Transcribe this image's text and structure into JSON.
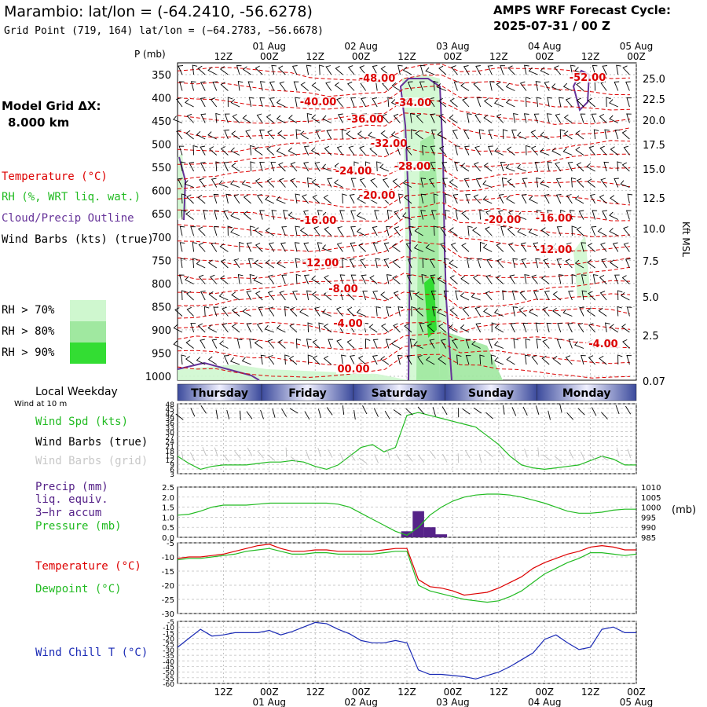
{
  "header": {
    "title": "Marambio:  lat/lon = (-64.2410, -56.6278)",
    "subtitle": "Grid Point (719, 164) lat/lon = (−64.2783, −56.6678)",
    "cycle_line1": "AMPS WRF Forecast Cycle:",
    "cycle_line2": "2025-07-31 / 00  Z"
  },
  "left_labels": {
    "model_grid": "Model Grid ΔX:",
    "grid_value": "8.000 km",
    "temperature": "Temperature (°C)",
    "rh": "RH (%, WRT liq. wat.)",
    "cloud": "Cloud/Precip Outline",
    "wind_barbs": "Wind Barbs (kts) (true)",
    "rh70": "RH > 70%",
    "rh80": "RH > 80%",
    "rh90": "RH > 90%",
    "local_weekday": "Local Weekday",
    "wind_10m": "Wind at 10 m",
    "wind_spd": "Wind Spd (kts)",
    "wind_barbs_true": "Wind Barbs (true)",
    "wind_barbs_grid": "Wind Barbs (grid)",
    "precip": "Precip (mm)",
    "liq": "liq. equiv.",
    "accum": "3−hr accum",
    "pressure": "Pressure (mb)",
    "temp2": "Temperature (°C)",
    "dewpoint": "Dewpoint (°C)",
    "windchill": "Wind Chill T (°C)",
    "p_unit": "P (mb)",
    "kft": "Kft MSL",
    "mb_unit": "(mb)"
  },
  "colors": {
    "temperature": "#dd0000",
    "rh70": "#cff7cf",
    "rh80": "#a0e8a0",
    "rh90": "#33dd33",
    "cloud": "#663399",
    "wind_speed": "#22bb22",
    "dewpoint": "#22bb22",
    "pressure": "#22bb22",
    "precip": "#552288",
    "windchill": "#1a2ab5",
    "grid": "#999999"
  },
  "chart_data": [
    {
      "type": "contour",
      "panel": "cross-section",
      "x_ticks_top": [
        "12Z",
        "00Z",
        "12Z",
        "00Z",
        "12Z",
        "00Z",
        "12Z",
        "00Z",
        "12Z",
        "00Z"
      ],
      "x_dates_top": [
        "01 Aug",
        "02 Aug",
        "03 Aug",
        "04 Aug",
        "05 Aug"
      ],
      "y_ticks": [
        "350",
        "400",
        "450",
        "500",
        "550",
        "600",
        "650",
        "700",
        "750",
        "800",
        "850",
        "900",
        "950",
        "1000"
      ],
      "y2_ticks": [
        "25.0",
        "22.5",
        "20.0",
        "17.5",
        "15.0",
        "12.5",
        "10.0",
        "7.5",
        "5.0",
        "2.5",
        "0.07"
      ],
      "temperature_labels": [
        {
          "label": "-48.00"
        },
        {
          "label": "-40.00"
        },
        {
          "label": "-36.00"
        },
        {
          "label": "-34.00"
        },
        {
          "label": "-32.00"
        },
        {
          "label": "-28.00"
        },
        {
          "label": "-24.00"
        },
        {
          "label": "-20.00"
        },
        {
          "label": "-16.00"
        },
        {
          "label": "-20.00"
        },
        {
          "label": "-16.00"
        },
        {
          "label": "-12.00"
        },
        {
          "label": "-12.00"
        },
        {
          "label": "-8.00"
        },
        {
          "label": "-4.00"
        },
        {
          "label": "-4.00"
        },
        {
          "label": "00.00"
        },
        {
          "label": "-52.00"
        }
      ]
    },
    {
      "type": "line",
      "panel": "wind",
      "y_ticks": [
        "48",
        "45",
        "42",
        "39",
        "36",
        "33",
        "30",
        "27",
        "24",
        "21",
        "18",
        "15",
        "12",
        "9",
        "6",
        "3"
      ],
      "ylim": [
        0,
        48
      ],
      "weekdays": [
        "Thursday",
        "Friday",
        "Saturday",
        "Sunday",
        "Monday"
      ],
      "x": [
        0,
        3,
        6,
        9,
        12,
        15,
        18,
        21,
        24,
        27,
        30,
        33,
        36,
        39,
        42,
        45,
        48,
        51,
        54,
        57,
        60,
        63,
        66,
        69,
        72,
        75,
        78,
        81,
        84,
        87,
        90,
        93,
        96,
        99,
        102,
        105,
        108,
        111,
        114,
        117,
        120
      ],
      "series": [
        {
          "values": [
            12,
            7,
            3,
            5,
            6,
            6,
            6,
            7,
            8,
            8,
            9,
            8,
            5,
            3,
            6,
            12,
            18,
            20,
            15,
            18,
            40,
            42,
            40,
            38,
            36,
            34,
            32,
            26,
            20,
            12,
            6,
            4,
            3,
            4,
            5,
            6,
            9,
            12,
            10,
            6,
            6
          ]
        }
      ]
    },
    {
      "type": "line+bar",
      "panel": "precip-pressure",
      "y_ticks": [
        "2.5",
        "2.0",
        "1.5",
        "1.0",
        "0.5",
        "0.0"
      ],
      "y2_ticks": [
        "1010",
        "1005",
        "1000",
        "995",
        "990",
        "985"
      ],
      "ylim": [
        0,
        2.5
      ],
      "y2lim": [
        985,
        1010
      ],
      "pressure_x": [
        0,
        3,
        6,
        9,
        12,
        15,
        18,
        21,
        24,
        27,
        30,
        33,
        36,
        39,
        42,
        45,
        48,
        51,
        54,
        57,
        60,
        63,
        66,
        69,
        72,
        75,
        78,
        81,
        84,
        87,
        90,
        93,
        96,
        99,
        102,
        105,
        108,
        111,
        114,
        117,
        120
      ],
      "pressure": [
        996,
        996.5,
        998,
        1000,
        1001,
        1001,
        1001,
        1001.5,
        1002,
        1002,
        1002,
        1002,
        1002,
        1002,
        1001.5,
        1000,
        997,
        994,
        991,
        988,
        986,
        990,
        996,
        1000,
        1003,
        1005,
        1006,
        1006.5,
        1006.5,
        1006,
        1005,
        1003.5,
        1002,
        1000,
        998,
        997,
        997,
        997.5,
        998.5,
        999,
        999
      ],
      "precip_x": [
        60,
        63,
        66,
        69,
        72
      ],
      "precip": [
        0.3,
        1.3,
        0.5,
        0.15,
        0.0
      ]
    },
    {
      "type": "line",
      "panel": "temperature",
      "y_ticks": [
        "-5",
        "-10",
        "-15",
        "-20",
        "-25",
        "-30"
      ],
      "ylim": [
        -30,
        -5
      ],
      "x": [
        0,
        3,
        6,
        9,
        12,
        15,
        18,
        21,
        24,
        27,
        30,
        33,
        36,
        39,
        42,
        45,
        48,
        51,
        54,
        57,
        60,
        63,
        66,
        69,
        72,
        75,
        78,
        81,
        84,
        87,
        90,
        93,
        96,
        99,
        102,
        105,
        108,
        111,
        114,
        117,
        120
      ],
      "series": [
        {
          "name": "Temperature",
          "values": [
            -10.5,
            -10,
            -10,
            -9.5,
            -9,
            -8,
            -7,
            -6,
            -5.5,
            -7,
            -8,
            -8,
            -7.5,
            -7.5,
            -8,
            -8,
            -8,
            -8,
            -7.5,
            -7,
            -7,
            -18,
            -20.5,
            -21,
            -22,
            -23.5,
            -23,
            -22.5,
            -21,
            -19,
            -17,
            -14,
            -12,
            -10.5,
            -9,
            -8,
            -6.5,
            -6,
            -6.5,
            -7.5,
            -7.5
          ]
        },
        {
          "name": "Dewpoint",
          "values": [
            -11,
            -10.5,
            -10.5,
            -10,
            -9.5,
            -9,
            -8,
            -7.5,
            -7,
            -8,
            -9,
            -9,
            -8.5,
            -8.5,
            -9,
            -9,
            -9,
            -9,
            -8.5,
            -8,
            -8,
            -20,
            -22,
            -23,
            -24,
            -25,
            -25.5,
            -26,
            -25.5,
            -24,
            -22,
            -19,
            -16,
            -14,
            -12,
            -10.5,
            -8.5,
            -8.5,
            -9,
            -9.5,
            -9
          ]
        }
      ]
    },
    {
      "type": "line",
      "panel": "windchill",
      "y_ticks": [
        "-5",
        "-10",
        "-15",
        "-20",
        "-25",
        "-30",
        "-35",
        "-40",
        "-45",
        "-50",
        "-55",
        "-60"
      ],
      "ylim": [
        -60,
        -5
      ],
      "x": [
        0,
        3,
        6,
        9,
        12,
        15,
        18,
        21,
        24,
        27,
        30,
        33,
        36,
        39,
        42,
        45,
        48,
        51,
        54,
        57,
        60,
        63,
        66,
        69,
        72,
        75,
        78,
        81,
        84,
        87,
        90,
        93,
        96,
        99,
        102,
        105,
        108,
        111,
        114,
        117,
        120
      ],
      "series": [
        {
          "values": [
            -28,
            -20,
            -12,
            -18,
            -17,
            -15,
            -15,
            -15,
            -13,
            -17,
            -14,
            -10,
            -6,
            -7,
            -12,
            -16,
            -22,
            -24,
            -24,
            -22,
            -24,
            -48,
            -52,
            -52,
            -53,
            -54,
            -56,
            -53,
            -50,
            -45,
            -39,
            -33,
            -21,
            -17,
            -24,
            -30,
            -28,
            -12,
            -10,
            -15,
            -15
          ]
        }
      ]
    }
  ]
}
